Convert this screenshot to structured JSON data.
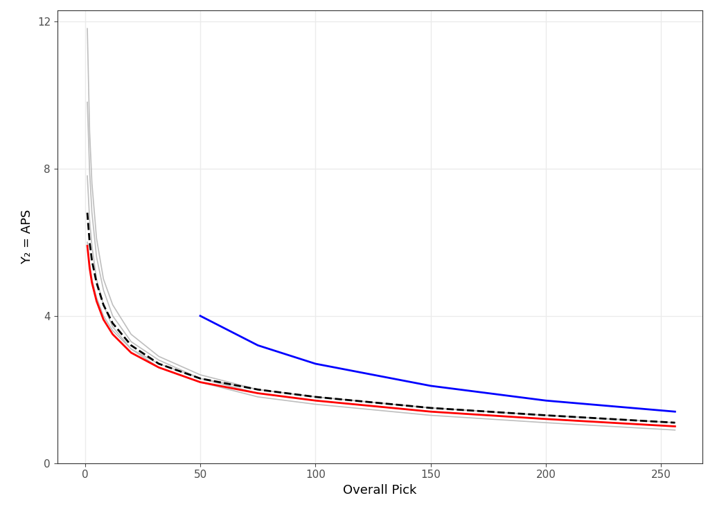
{
  "chart_data": {
    "type": "line",
    "x_label": "Overall Pick",
    "y_label": "Y₂ = APS",
    "x": [
      1,
      2,
      3,
      5,
      8,
      12,
      20,
      32,
      50,
      75,
      100,
      150,
      200,
      256
    ],
    "series": [
      {
        "color": "#bebebe",
        "line_style": "solid",
        "values": [
          11.8,
          9.0,
          7.6,
          6.1,
          5.0,
          4.3,
          3.5,
          2.9,
          2.4,
          2.0,
          1.8,
          1.5,
          1.3,
          1.1
        ]
      },
      {
        "color": "#bebebe",
        "line_style": "solid",
        "values": [
          9.8,
          7.9,
          6.8,
          5.6,
          4.7,
          4.0,
          3.3,
          2.8,
          2.3,
          1.9,
          1.7,
          1.4,
          1.2,
          1.0
        ]
      },
      {
        "color": "#bebebe",
        "line_style": "solid",
        "values": [
          7.8,
          6.6,
          5.9,
          5.0,
          4.3,
          3.7,
          3.1,
          2.6,
          2.2,
          1.8,
          1.6,
          1.3,
          1.1,
          0.9
        ]
      },
      {
        "color": "#bebebe",
        "line_style": "solid",
        "values": [
          6.0,
          5.4,
          5.0,
          4.5,
          4.0,
          3.6,
          3.1,
          2.7,
          2.3,
          2.0,
          1.8,
          1.5,
          1.3,
          1.1
        ]
      },
      {
        "color": "#000000",
        "line_style": "dashed",
        "values": [
          6.8,
          6.0,
          5.5,
          4.9,
          4.3,
          3.8,
          3.2,
          2.7,
          2.3,
          2.0,
          1.8,
          1.5,
          1.3,
          1.1
        ]
      },
      {
        "color": "#ff0000",
        "line_style": "solid",
        "values": [
          5.9,
          5.3,
          4.9,
          4.4,
          3.9,
          3.5,
          3.0,
          2.6,
          2.2,
          1.9,
          1.7,
          1.4,
          1.2,
          1.0
        ]
      },
      {
        "color": "#0000ff",
        "line_style": "solid",
        "values": [
          null,
          null,
          null,
          null,
          null,
          null,
          null,
          null,
          4.0,
          3.2,
          2.7,
          2.1,
          1.7,
          1.4
        ]
      }
    ],
    "xlim": [
      -12,
      268
    ],
    "xticks": [
      0,
      50,
      100,
      150,
      200,
      250
    ],
    "ylim": [
      0,
      12.3
    ],
    "yticks": [
      0,
      4,
      8,
      12
    ],
    "grid": true
  }
}
